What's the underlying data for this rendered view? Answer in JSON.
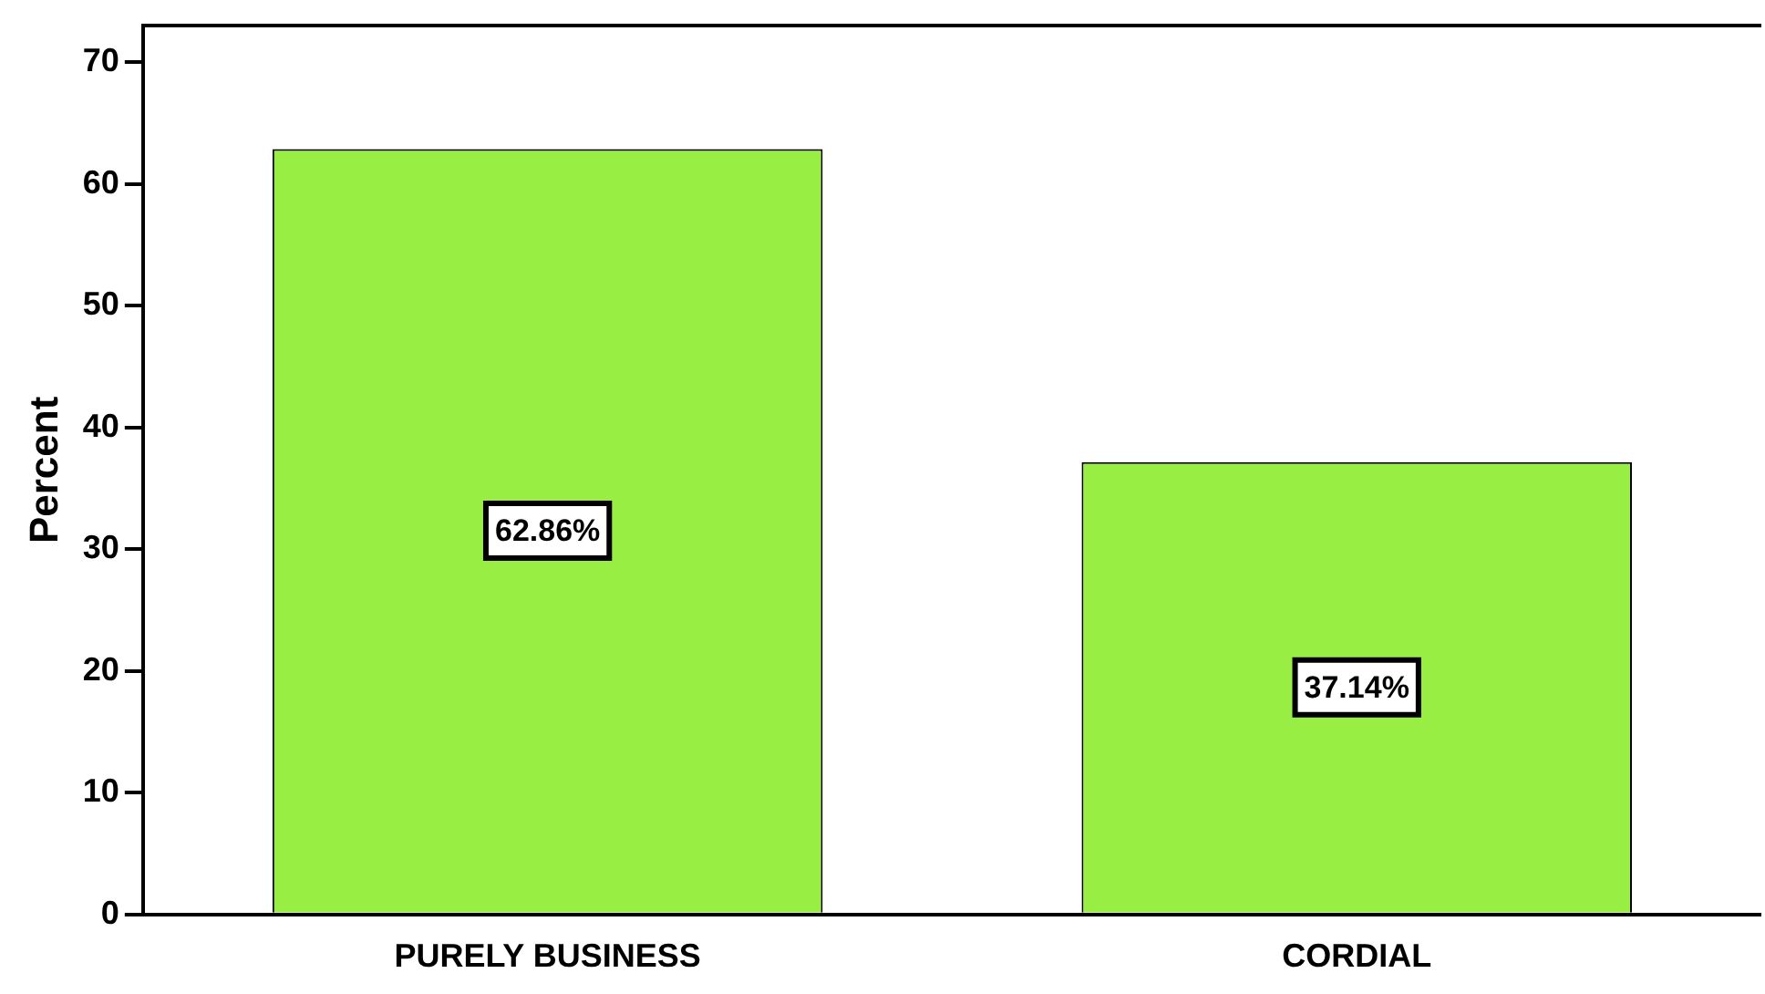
{
  "chart_data": {
    "type": "bar",
    "ylabel": "Percent",
    "categories": [
      "PURELY BUSINESS",
      "CORDIAL"
    ],
    "series": [
      {
        "color": "#99ee44",
        "values": [
          62.86,
          37.14
        ],
        "value_labels": [
          "62.86%",
          "37.14%"
        ]
      }
    ],
    "ylim": [
      0,
      73
    ],
    "yticks": [
      0,
      10,
      20,
      30,
      40,
      50,
      60,
      70
    ],
    "grid": false,
    "legend": false
  }
}
